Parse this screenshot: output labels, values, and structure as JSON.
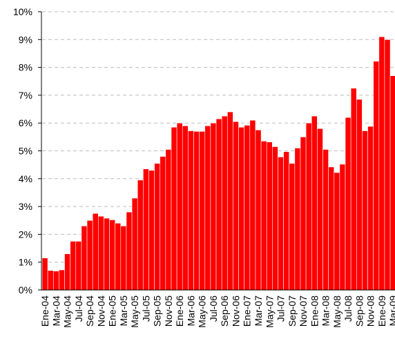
{
  "chart_data": {
    "type": "bar",
    "categories": [
      "Ene-04",
      null,
      "Mar-04",
      null,
      "May-04",
      null,
      "Jul-04",
      null,
      "Sep-04",
      null,
      "Nov-04",
      null,
      "Ene-05",
      null,
      "Mar-05",
      null,
      "May-05",
      null,
      "Jul-05",
      null,
      "Sep-05",
      null,
      "Nov-05",
      null,
      "Ene-06",
      null,
      "Mar-06",
      null,
      "May-06",
      null,
      "Jul-06",
      null,
      "Sep-06",
      null,
      "Nov-06",
      null,
      "Ene-07",
      null,
      "Mar-07",
      null,
      "May-07",
      null,
      "Jul-07",
      null,
      "Sep-07",
      null,
      "Nov-07",
      null,
      "Ene-08",
      null,
      "Mar-08",
      null,
      "May-08",
      null,
      "Jul-08",
      null,
      "Sep-08",
      null,
      "Nov-08",
      null,
      "Ene-09",
      null,
      "Mar-09"
    ],
    "values": [
      1.15,
      0.7,
      0.68,
      0.72,
      1.3,
      1.75,
      1.75,
      2.3,
      2.5,
      2.75,
      2.65,
      2.58,
      2.52,
      2.4,
      2.3,
      2.8,
      3.3,
      3.95,
      4.35,
      4.3,
      4.55,
      4.8,
      5.05,
      5.85,
      6.0,
      5.9,
      5.72,
      5.7,
      5.7,
      5.9,
      6.0,
      6.15,
      6.25,
      6.4,
      6.05,
      5.85,
      5.92,
      6.1,
      5.75,
      5.35,
      5.32,
      5.15,
      4.78,
      4.97,
      4.55,
      5.1,
      5.5,
      6.0,
      6.25,
      5.8,
      5.05,
      4.42,
      4.22,
      4.52,
      6.2,
      7.25,
      6.85,
      5.72,
      5.88,
      8.22,
      9.1,
      9.0,
      7.7
    ],
    "color": "#ff0000",
    "ylim": [
      0,
      10
    ],
    "yticks": [
      {
        "value": 0,
        "label": "0%"
      },
      {
        "value": 1,
        "label": "1%"
      },
      {
        "value": 2,
        "label": "2%"
      },
      {
        "value": 3,
        "label": "3%"
      },
      {
        "value": 4,
        "label": "4%"
      },
      {
        "value": 5,
        "label": "5%"
      },
      {
        "value": 6,
        "label": "6%"
      },
      {
        "value": 7,
        "label": "7%"
      },
      {
        "value": 8,
        "label": "8%"
      },
      {
        "value": 9,
        "label": "9%"
      },
      {
        "value": 10,
        "label": "10%"
      }
    ],
    "grid": true
  }
}
